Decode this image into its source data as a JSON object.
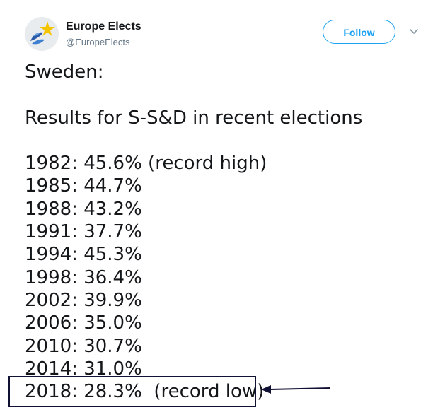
{
  "author": {
    "name": "Europe Elects",
    "handle": "@EuropeElects",
    "avatar_icon": "europe-elects-logo-icon"
  },
  "actions": {
    "follow_label": "Follow",
    "more_icon": "chevron-down-icon"
  },
  "tweet": {
    "country": "Sweden:",
    "subtitle": "Results for S-S&D in recent elections",
    "results": [
      "1982: 45.6% (record high)",
      "1985: 44.7%",
      "1988: 43.2%",
      "1991: 37.7%",
      "1994: 45.3%",
      "1998: 36.4%",
      "2002: 39.9%",
      "2006: 35.0%",
      "2010: 30.7%",
      "2014: 31.0%",
      "2018: 28.3%  (record low)"
    ]
  },
  "annotation": {
    "box_color": "#111133",
    "arrow_color": "#111133"
  },
  "colors": {
    "accent": "#1da1f2",
    "handle": "#657786",
    "text": "#14171a"
  }
}
